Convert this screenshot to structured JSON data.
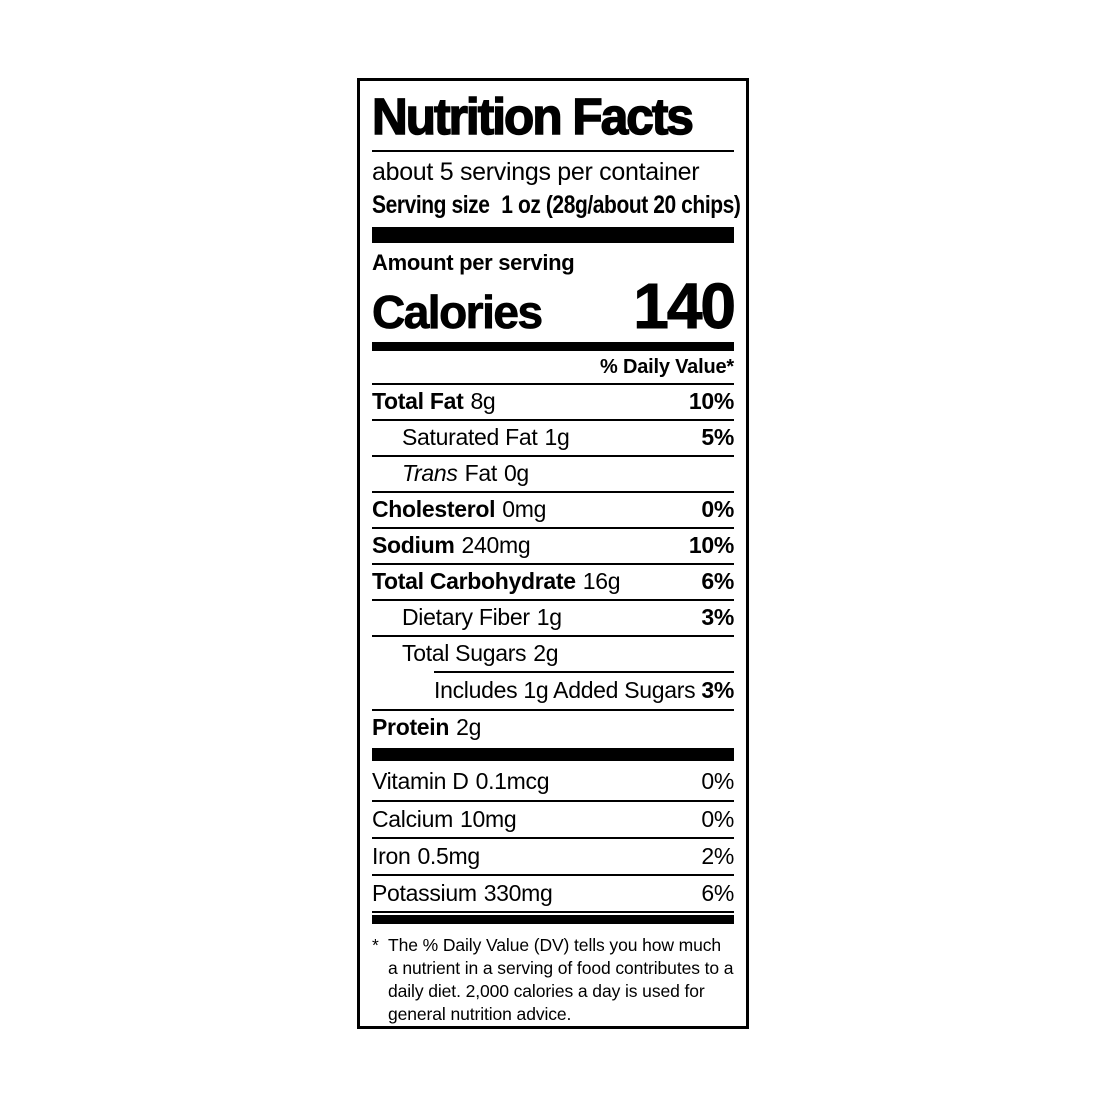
{
  "colors": {
    "ink": "#000000",
    "paper": "#ffffff"
  },
  "label": {
    "title": "Nutrition Facts",
    "servings_per_container": "about 5 servings per container",
    "serving_size_label": "Serving size",
    "serving_size_value": "1 oz (28g/about 20 chips)",
    "amount_per_serving": "Amount per serving",
    "calories_label": "Calories",
    "calories_value": "140",
    "daily_value_header": "% Daily Value*",
    "nutrients": [
      {
        "name": "Total Fat",
        "amount": "8g",
        "dv": "10%"
      },
      {
        "name": "Saturated Fat",
        "amount": "1g",
        "dv": "5%"
      },
      {
        "name_italic": "Trans",
        "name": "Fat",
        "amount": "0g",
        "dv": ""
      },
      {
        "name": "Cholesterol",
        "amount": "0mg",
        "dv": "0%"
      },
      {
        "name": "Sodium",
        "amount": "240mg",
        "dv": "10%"
      },
      {
        "name": "Total Carbohydrate",
        "amount": "16g",
        "dv": "6%"
      },
      {
        "name": "Dietary Fiber",
        "amount": "1g",
        "dv": "3%"
      },
      {
        "name": "Total Sugars",
        "amount": "2g",
        "dv": ""
      },
      {
        "name": "Includes 1g Added Sugars",
        "amount": "",
        "dv": "3%"
      },
      {
        "name": "Protein",
        "amount": "2g",
        "dv": ""
      }
    ],
    "micronutrients": [
      {
        "name": "Vitamin D",
        "amount": "0.1mcg",
        "dv": "0%"
      },
      {
        "name": "Calcium",
        "amount": "10mg",
        "dv": "0%"
      },
      {
        "name": "Iron",
        "amount": "0.5mg",
        "dv": "2%"
      },
      {
        "name": "Potassium",
        "amount": "330mg",
        "dv": "6%"
      }
    ],
    "footnote_marker": "*",
    "footnote": "The % Daily Value (DV) tells you how much a nutrient in a serving of food contributes to a daily diet. 2,000 calories a day is used for general nutrition advice."
  }
}
